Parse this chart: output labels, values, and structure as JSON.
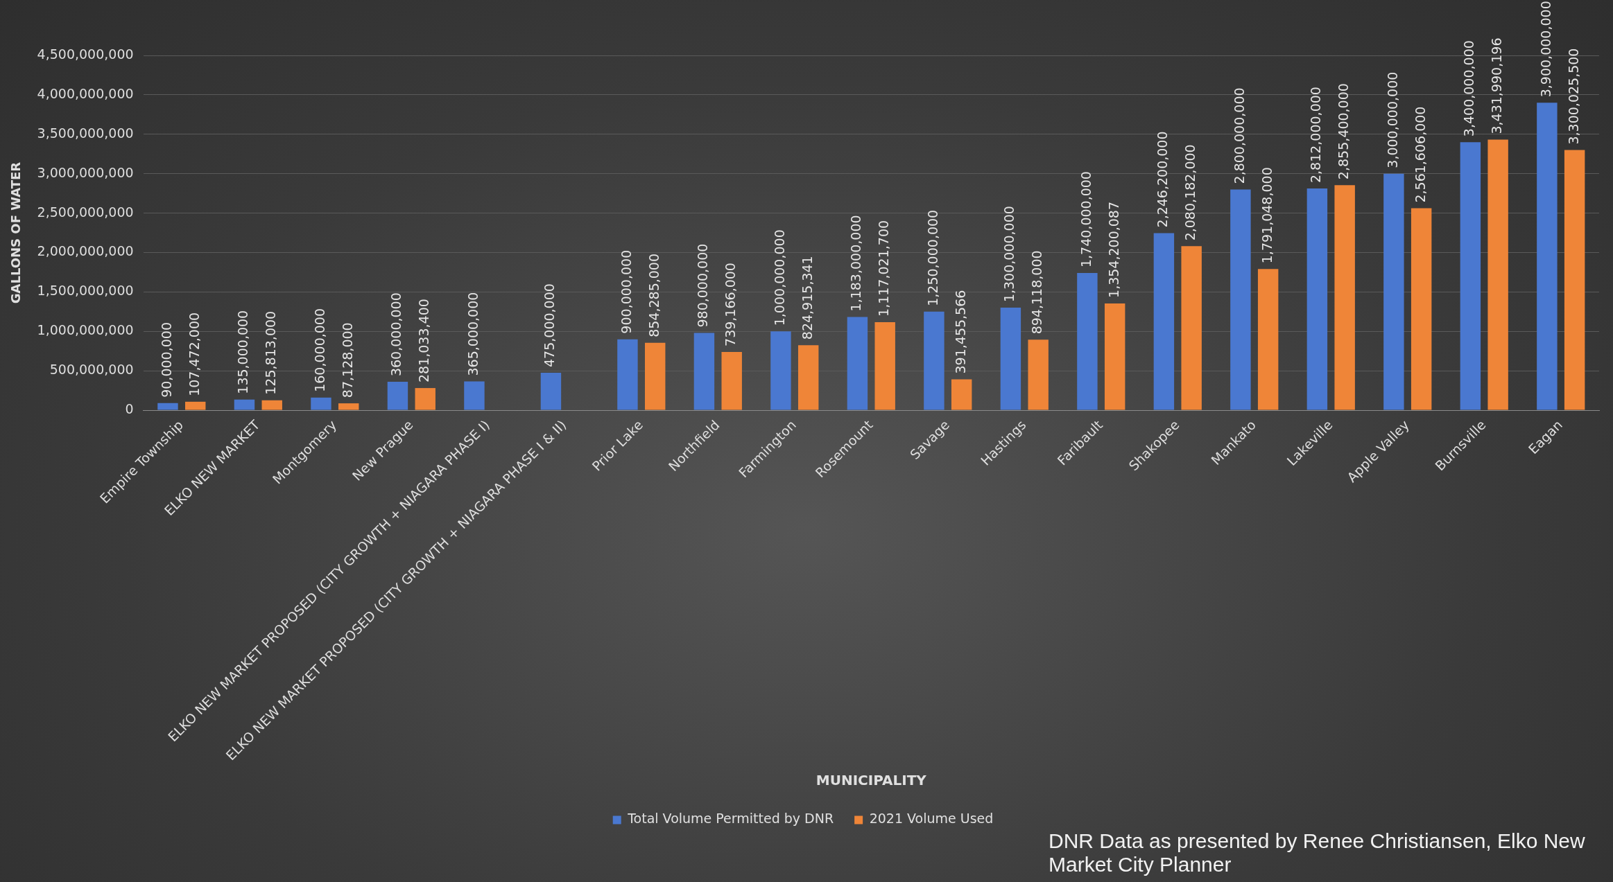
{
  "chart_data": {
    "type": "bar",
    "xlabel": "MUNICIPALITY",
    "ylabel": "GALLONS OF WATER",
    "categories": [
      "Empire Township",
      "ELKO NEW MARKET",
      "Montgomery",
      "New Prague",
      "ELKO NEW MARKET PROPOSED (CITY GROWTH + NIAGARA PHASE I)",
      "ELKO NEW MARKET PROPOSED (CITY GROWTH + NIAGARA PHASE I & II)",
      "Prior Lake",
      "Northfield",
      "Farmington",
      "Rosemount",
      "Savage",
      "Hastings",
      "Faribault",
      "Shakopee",
      "Mankato",
      "Lakeville",
      "Apple Valley",
      "Burnsville",
      "Eagan"
    ],
    "series": [
      {
        "name": "Total Volume Permitted by DNR",
        "color": "#4a78d0",
        "values": [
          90000000,
          135000000,
          160000000,
          360000000,
          365000000,
          475000000,
          900000000,
          980000000,
          1000000000,
          1183000000,
          1250000000,
          1300000000,
          1740000000,
          2246200000,
          2800000000,
          2812000000,
          3000000000,
          3400000000,
          3900000000
        ],
        "value_labels": [
          "90,000,000",
          "135,000,000",
          "160,000,000",
          "360,000,000",
          "365,000,000",
          "475,000,000",
          "900,000,000",
          "980,000,000",
          "1,000,000,000",
          "1,183,000,000",
          "1,250,000,000",
          "1,300,000,000",
          "1,740,000,000",
          "2,246,200,000",
          "2,800,000,000",
          "2,812,000,000",
          "3,000,000,000",
          "3,400,000,000",
          "3,900,000,000"
        ]
      },
      {
        "name": "2021 Volume Used",
        "color": "#ef8538",
        "values": [
          107472000,
          125813000,
          87128000,
          281033400,
          null,
          null,
          854285000,
          739166000,
          824915341,
          1117021700,
          391455566,
          894118000,
          1354200087,
          2080182000,
          1791048000,
          2855400000,
          2561606000,
          3431990196,
          3300025500
        ],
        "value_labels": [
          "107,472,000",
          "125,813,000",
          "87,128,000",
          "281,033,400",
          null,
          null,
          "854,285,000",
          "739,166,000",
          "824,915,341",
          "1,117,021,700",
          "391,455,566",
          "894,118,000",
          "1,354,200,087",
          "2,080,182,000",
          "1,791,048,000",
          "2,855,400,000",
          "2,561,606,000",
          "3,431,990,196",
          "3,300,025,500"
        ]
      }
    ],
    "ylim": [
      0,
      4500000000
    ],
    "yticks": [
      {
        "value": 0,
        "label": "0"
      },
      {
        "value": 500000000,
        "label": "500,000,000"
      },
      {
        "value": 1000000000,
        "label": "1,000,000,000"
      },
      {
        "value": 1500000000,
        "label": "1,500,000,000"
      },
      {
        "value": 2000000000,
        "label": "2,000,000,000"
      },
      {
        "value": 2500000000,
        "label": "2,500,000,000"
      },
      {
        "value": 3000000000,
        "label": "3,000,000,000"
      },
      {
        "value": 3500000000,
        "label": "3,500,000,000"
      },
      {
        "value": 4000000000,
        "label": "4,000,000,000"
      },
      {
        "value": 4500000000,
        "label": "4,500,000,000"
      }
    ],
    "grid": "y",
    "legend": "bottom",
    "annotations": [
      "DNR Data as presented by Renee Christiansen, Elko New Market City Planner"
    ]
  }
}
